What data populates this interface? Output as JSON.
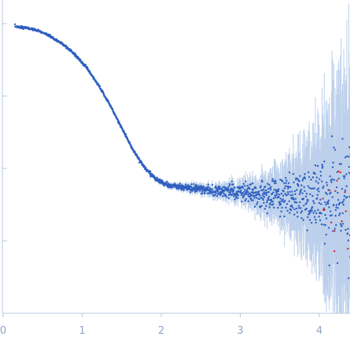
{
  "chart_data": {
    "type": "scatter",
    "title": "",
    "xlabel": "",
    "ylabel": "",
    "xlim": [
      0,
      4.4
    ],
    "ylim": [
      0,
      1.0
    ],
    "x_ticks": [
      0,
      1,
      2,
      3,
      4
    ],
    "x_tick_labels": [
      "0",
      "1",
      "2",
      "3",
      "4"
    ],
    "y_ticks": [
      0.25,
      0.5,
      0.75,
      1.0
    ],
    "grid": false,
    "legend": "none",
    "series": [
      {
        "color": "#2f5fbf",
        "description_points": [
          [
            0.15,
            0.99
          ],
          [
            0.3,
            0.985
          ],
          [
            0.45,
            0.975
          ],
          [
            0.6,
            0.955
          ],
          [
            0.75,
            0.93
          ],
          [
            0.9,
            0.895
          ],
          [
            1.05,
            0.85
          ],
          [
            1.2,
            0.79
          ],
          [
            1.35,
            0.72
          ],
          [
            1.5,
            0.64
          ],
          [
            1.65,
            0.56
          ],
          [
            1.8,
            0.5
          ],
          [
            1.95,
            0.46
          ],
          [
            2.1,
            0.44
          ],
          [
            2.3,
            0.435
          ],
          [
            2.5,
            0.43
          ],
          [
            2.7,
            0.425
          ],
          [
            2.9,
            0.42
          ],
          [
            3.1,
            0.415
          ],
          [
            3.3,
            0.41
          ],
          [
            3.5,
            0.405
          ],
          [
            3.7,
            0.4
          ],
          [
            3.9,
            0.395
          ],
          [
            4.1,
            0.39
          ],
          [
            4.3,
            0.385
          ]
        ]
      }
    ],
    "outlier_color": "#d62728"
  }
}
